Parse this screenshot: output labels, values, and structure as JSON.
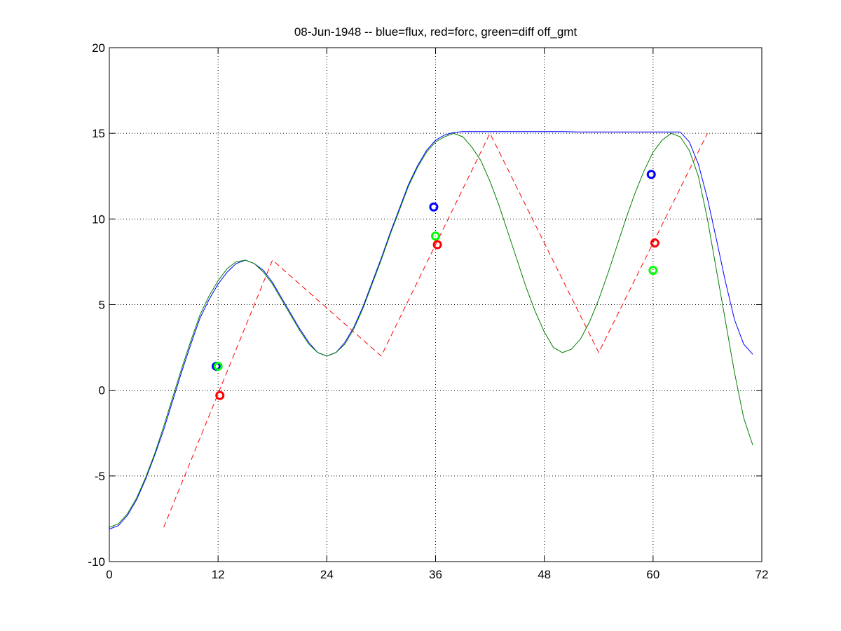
{
  "chart_data": {
    "type": "line",
    "title": "08-Jun-1948 -- blue=flux, red=forc, green=diff off_gmt",
    "xlabel": "",
    "ylabel": "",
    "xlim": [
      0,
      72
    ],
    "ylim": [
      -10,
      20
    ],
    "xticks": [
      0,
      12,
      24,
      36,
      48,
      60,
      72
    ],
    "yticks": [
      -10,
      -5,
      0,
      5,
      10,
      15,
      20
    ],
    "grid": true,
    "colors": {
      "blue": "#0000ff",
      "red": "#ff0000",
      "green": "#008000",
      "green_marker": "#00ff00"
    },
    "series": [
      {
        "color": "blue",
        "style": "solid",
        "x": [
          0,
          1,
          2,
          3,
          4,
          5,
          6,
          7,
          8,
          9,
          10,
          11,
          12,
          13,
          14,
          15,
          16,
          17,
          18,
          19,
          20,
          21,
          22,
          23,
          24,
          25,
          26,
          27,
          28,
          29,
          30,
          31,
          32,
          33,
          34,
          35,
          36,
          37,
          38,
          39,
          40,
          42,
          44,
          46,
          48,
          50,
          52,
          54,
          56,
          58,
          59,
          60,
          61,
          62,
          63,
          64,
          65,
          66,
          67,
          68,
          69,
          70,
          71
        ],
        "y": [
          -8.1,
          -7.9,
          -7.3,
          -6.4,
          -5.2,
          -3.8,
          -2.3,
          -0.6,
          1.1,
          2.7,
          4.2,
          5.3,
          6.2,
          6.9,
          7.4,
          7.6,
          7.4,
          7.0,
          6.3,
          5.4,
          4.5,
          3.6,
          2.8,
          2.2,
          2.0,
          2.2,
          2.8,
          3.7,
          4.9,
          6.3,
          7.7,
          9.2,
          10.6,
          12.0,
          13.1,
          14.0,
          14.6,
          14.9,
          15.05,
          15.1,
          15.1,
          15.1,
          15.1,
          15.1,
          15.1,
          15.1,
          15.08,
          15.08,
          15.08,
          15.08,
          15.08,
          15.08,
          15.08,
          15.08,
          15.08,
          14.5,
          13.2,
          11.2,
          8.8,
          6.3,
          4.1,
          2.7,
          2.1
        ]
      },
      {
        "color": "red",
        "style": "dashed",
        "x": [
          6,
          18,
          30,
          42,
          54,
          66
        ],
        "y": [
          -8.0,
          7.6,
          2.0,
          15.0,
          2.2,
          15.0
        ]
      },
      {
        "color": "green",
        "style": "solid",
        "x": [
          0,
          1,
          2,
          3,
          4,
          5,
          6,
          7,
          8,
          9,
          10,
          11,
          12,
          13,
          14,
          15,
          16,
          17,
          18,
          19,
          20,
          21,
          22,
          23,
          24,
          25,
          26,
          27,
          28,
          29,
          30,
          31,
          32,
          33,
          34,
          35,
          36,
          37,
          38,
          39,
          40,
          41,
          42,
          43,
          44,
          45,
          46,
          47,
          48,
          49,
          50,
          51,
          52,
          53,
          54,
          55,
          56,
          57,
          58,
          59,
          60,
          61,
          62,
          63,
          64,
          65,
          66,
          67,
          68,
          69,
          70,
          71
        ],
        "y": [
          -8.0,
          -7.8,
          -7.2,
          -6.3,
          -5.1,
          -3.7,
          -2.1,
          -0.4,
          1.3,
          2.9,
          4.4,
          5.5,
          6.4,
          7.1,
          7.5,
          7.6,
          7.4,
          6.9,
          6.2,
          5.3,
          4.4,
          3.5,
          2.7,
          2.2,
          2.0,
          2.2,
          2.7,
          3.6,
          4.8,
          6.2,
          7.6,
          9.1,
          10.5,
          11.9,
          13.0,
          13.9,
          14.5,
          14.8,
          15.0,
          14.8,
          14.2,
          13.4,
          12.2,
          10.8,
          9.2,
          7.6,
          6.0,
          4.6,
          3.4,
          2.5,
          2.2,
          2.4,
          3.0,
          4.0,
          5.3,
          6.8,
          8.4,
          10.0,
          11.5,
          12.8,
          13.9,
          14.6,
          15.0,
          14.8,
          14.0,
          12.5,
          10.0,
          7.0,
          4.0,
          1.0,
          -1.6,
          -3.2
        ]
      }
    ],
    "markers": [
      {
        "color": "blue",
        "x": 11.8,
        "y": 1.4
      },
      {
        "color": "green_marker",
        "x": 12.0,
        "y": 1.4
      },
      {
        "color": "red",
        "x": 12.2,
        "y": -0.3
      },
      {
        "color": "blue",
        "x": 35.8,
        "y": 10.7
      },
      {
        "color": "green_marker",
        "x": 36.0,
        "y": 9.0
      },
      {
        "color": "red",
        "x": 36.2,
        "y": 8.5
      },
      {
        "color": "blue",
        "x": 59.8,
        "y": 12.6
      },
      {
        "color": "green_marker",
        "x": 60.0,
        "y": 7.0
      },
      {
        "color": "red",
        "x": 60.2,
        "y": 8.6
      }
    ]
  }
}
